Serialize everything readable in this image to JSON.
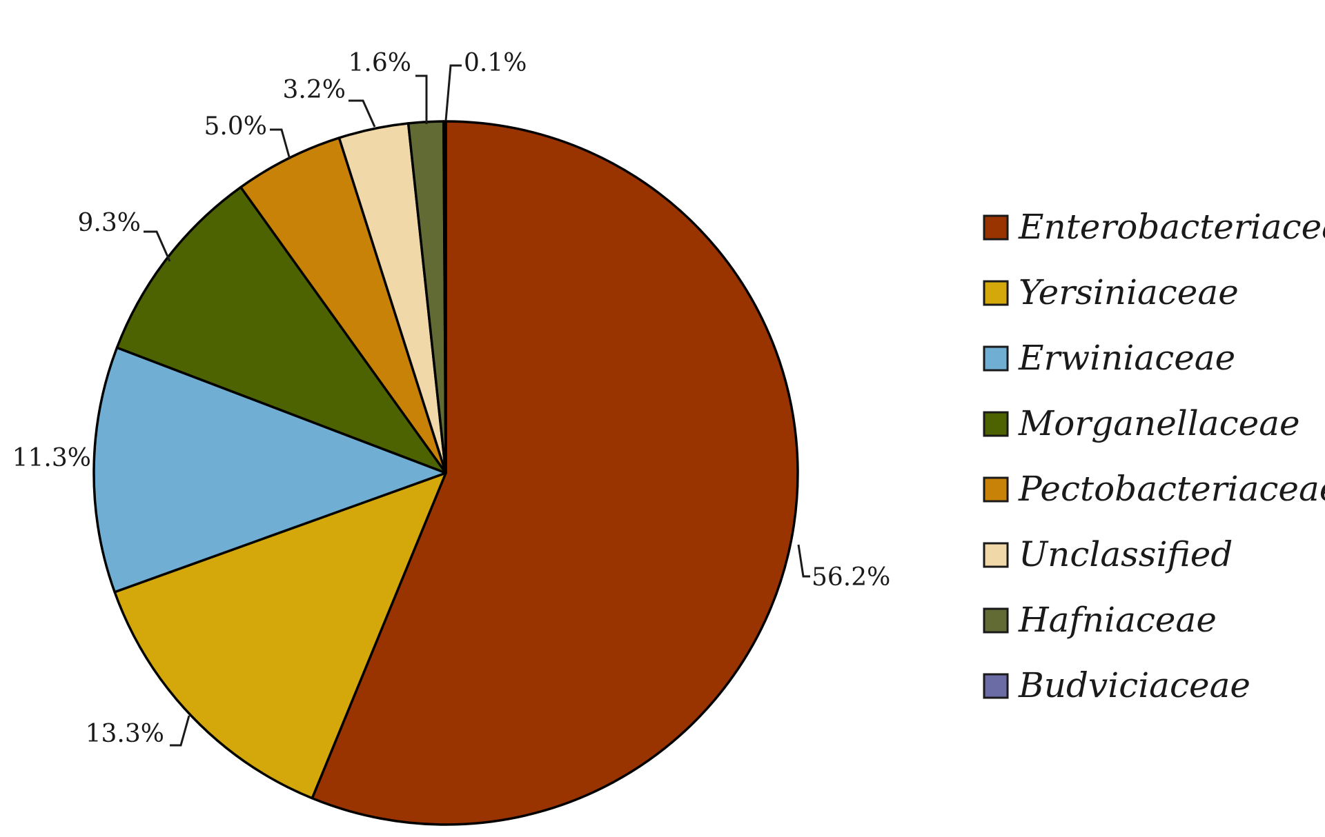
{
  "chart_data": {
    "type": "pie",
    "unit": "%",
    "start": "top",
    "direction": "clockwise",
    "slices": [
      {
        "name": "Enterobacteriaceae",
        "value": 56.2,
        "label": "56.2%",
        "color": "#993300"
      },
      {
        "name": "Yersiniaceae",
        "value": 13.3,
        "label": "13.3%",
        "color": "#D4A80A"
      },
      {
        "name": "Erwiniaceae",
        "value": 11.3,
        "label": "11.3%",
        "color": "#70AED4"
      },
      {
        "name": "Morganellaceae",
        "value": 9.3,
        "label": "9.3%",
        "color": "#4D6200"
      },
      {
        "name": "Pectobacteriaceae",
        "value": 5.0,
        "label": "5.0%",
        "color": "#C98208"
      },
      {
        "name": "Unclassified",
        "value": 3.2,
        "label": "3.2%",
        "color": "#F0D8A8"
      },
      {
        "name": "Hafniaceae",
        "value": 1.6,
        "label": "1.6%",
        "color": "#636B35"
      },
      {
        "name": "Budviciaceae",
        "value": 0.1,
        "label": "0.1%",
        "color": "#6B6BA6"
      }
    ],
    "legend_position": "right"
  }
}
